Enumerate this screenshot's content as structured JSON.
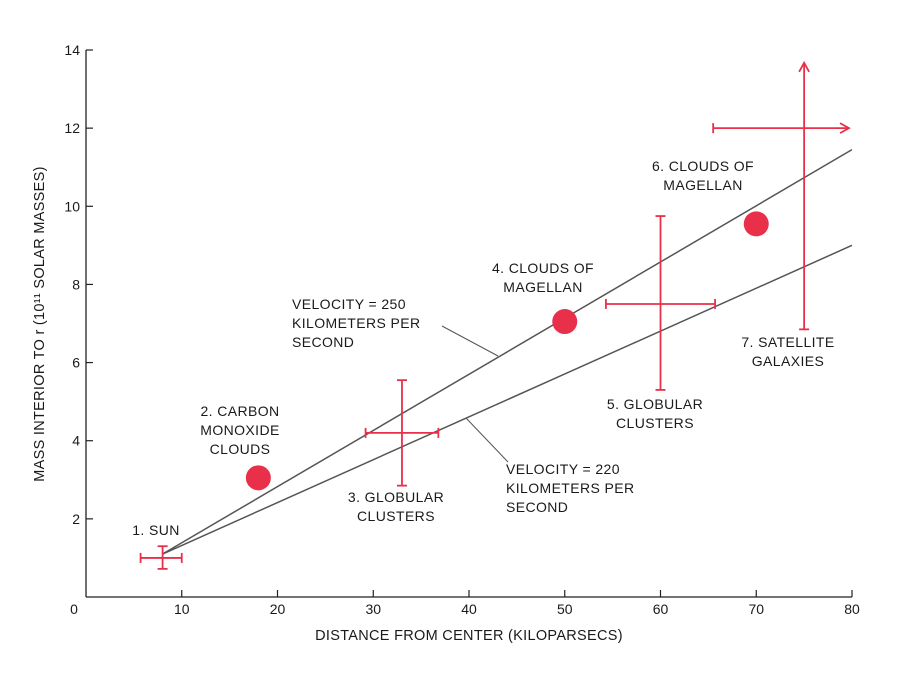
{
  "chart_data": {
    "type": "scatter",
    "title": "",
    "xlabel": "DISTANCE FROM CENTER (KILOPARSECS)",
    "ylabel": "MASS INTERIOR TO r (10¹¹ SOLAR MASSES)",
    "xlim": [
      0,
      80
    ],
    "ylim": [
      0,
      14
    ],
    "x_ticks": [
      "0",
      "10",
      "20",
      "30",
      "40",
      "50",
      "60",
      "70",
      "80"
    ],
    "y_ticks": [
      "2",
      "4",
      "6",
      "8",
      "10",
      "12",
      "14"
    ],
    "grid": false,
    "colors": {
      "points": "#e8304a",
      "lines": "#555555",
      "axes": "#222222"
    },
    "lines": [
      {
        "label": [
          "VELOCITY = 250",
          "KILOMETERS PER",
          "SECOND"
        ],
        "x": [
          8,
          80
        ],
        "y": [
          1.1,
          11.45
        ]
      },
      {
        "label": [
          "VELOCITY = 220",
          "KILOMETERS PER",
          "SECOND"
        ],
        "x": [
          8,
          80
        ],
        "y": [
          1.1,
          9.0
        ]
      }
    ],
    "points": [
      {
        "id": 1,
        "label": [
          "1. SUN"
        ],
        "x": 8,
        "y": 1.0,
        "marker": "cross",
        "xerr": [
          5.7,
          10
        ],
        "yerr": [
          0.72,
          1.3
        ]
      },
      {
        "id": 2,
        "label": [
          "2. CARBON",
          "MONOXIDE",
          "CLOUDS"
        ],
        "x": 18,
        "y": 3.05,
        "marker": "dot"
      },
      {
        "id": 3,
        "label": [
          "3. GLOBULAR",
          "CLUSTERS"
        ],
        "x": 33,
        "y": 4.2,
        "marker": "cross",
        "xerr": [
          29.2,
          36.8
        ],
        "yerr": [
          2.85,
          5.55
        ]
      },
      {
        "id": 4,
        "label": [
          "4. CLOUDS OF",
          "MAGELLAN"
        ],
        "x": 50,
        "y": 7.05,
        "marker": "dot"
      },
      {
        "id": 5,
        "label": [
          "5. GLOBULAR",
          "CLUSTERS"
        ],
        "x": 60,
        "y": 7.5,
        "marker": "cross",
        "xerr": [
          54.3,
          65.7
        ],
        "yerr": [
          5.3,
          9.75
        ]
      },
      {
        "id": 6,
        "label": [
          "6. CLOUDS OF",
          "MAGELLAN"
        ],
        "x": 70,
        "y": 9.55,
        "marker": "dot"
      },
      {
        "id": 7,
        "label": [
          "7. SATELLITE",
          "GALAXIES"
        ],
        "x": 75,
        "y": 12.0,
        "marker": "lower-limit",
        "xerr": [
          65.5,
          80
        ],
        "yerr": [
          6.85,
          13.75
        ]
      }
    ]
  }
}
